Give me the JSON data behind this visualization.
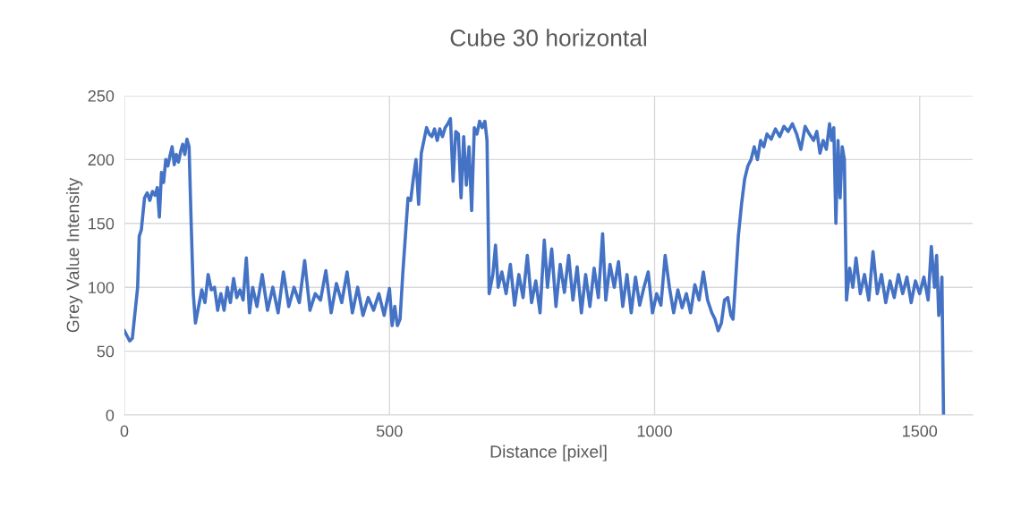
{
  "chart_data": {
    "type": "line",
    "title": "Cube 30 horizontal",
    "xlabel": "Distance [pixel]",
    "ylabel": "Grey Value Intensity",
    "xlim": [
      0,
      1600
    ],
    "xticks": [
      0,
      500,
      1000,
      1500
    ],
    "ylim": [
      0,
      250
    ],
    "yticks": [
      0,
      50,
      100,
      150,
      200,
      250
    ],
    "grid": true,
    "legend": false,
    "marker": "none",
    "line_style": "solid",
    "series": [
      {
        "color": "#4472c4",
        "x": [
          0,
          5,
          10,
          15,
          20,
          25,
          28,
          32,
          38,
          43,
          48,
          53,
          58,
          62,
          66,
          70,
          74,
          78,
          82,
          86,
          90,
          94,
          98,
          102,
          106,
          110,
          114,
          118,
          122,
          126,
          130,
          134,
          140,
          146,
          152,
          158,
          164,
          170,
          176,
          182,
          188,
          194,
          200,
          206,
          212,
          218,
          224,
          230,
          236,
          242,
          250,
          260,
          270,
          280,
          290,
          300,
          310,
          320,
          330,
          340,
          350,
          360,
          370,
          380,
          390,
          400,
          410,
          420,
          430,
          440,
          450,
          460,
          470,
          480,
          490,
          500,
          505,
          510,
          515,
          520,
          525,
          530,
          535,
          540,
          545,
          550,
          555,
          560,
          565,
          570,
          575,
          580,
          585,
          590,
          595,
          600,
          605,
          610,
          615,
          620,
          625,
          630,
          635,
          640,
          645,
          650,
          655,
          660,
          665,
          670,
          675,
          680,
          684,
          688,
          695,
          700,
          705,
          712,
          720,
          728,
          736,
          744,
          752,
          760,
          768,
          776,
          784,
          792,
          798,
          806,
          814,
          822,
          830,
          838,
          846,
          854,
          862,
          870,
          878,
          886,
          894,
          902,
          908,
          916,
          924,
          932,
          940,
          948,
          956,
          964,
          972,
          980,
          988,
          996,
          1004,
          1012,
          1020,
          1028,
          1036,
          1044,
          1052,
          1060,
          1068,
          1076,
          1084,
          1092,
          1100,
          1108,
          1114,
          1120,
          1126,
          1132,
          1138,
          1144,
          1148,
          1152,
          1158,
          1164,
          1170,
          1176,
          1182,
          1188,
          1194,
          1200,
          1206,
          1212,
          1220,
          1228,
          1236,
          1244,
          1252,
          1260,
          1268,
          1276,
          1284,
          1292,
          1300,
          1306,
          1312,
          1318,
          1324,
          1330,
          1334,
          1338,
          1342,
          1346,
          1350,
          1354,
          1358,
          1362,
          1368,
          1374,
          1380,
          1388,
          1396,
          1404,
          1412,
          1420,
          1428,
          1436,
          1444,
          1452,
          1460,
          1468,
          1476,
          1484,
          1492,
          1500,
          1508,
          1516,
          1522,
          1528,
          1532,
          1536,
          1540,
          1542,
          1545
        ],
        "values": [
          66,
          62,
          58,
          60,
          80,
          100,
          140,
          145,
          170,
          174,
          168,
          175,
          172,
          178,
          155,
          190,
          182,
          200,
          195,
          203,
          210,
          196,
          204,
          198,
          206,
          212,
          204,
          216,
          210,
          150,
          95,
          72,
          85,
          98,
          88,
          110,
          98,
          100,
          82,
          95,
          82,
          100,
          88,
          107,
          92,
          98,
          90,
          123,
          80,
          100,
          85,
          110,
          82,
          100,
          80,
          112,
          85,
          100,
          88,
          121,
          82,
          95,
          90,
          113,
          80,
          103,
          88,
          112,
          80,
          100,
          78,
          92,
          82,
          95,
          78,
          99,
          70,
          85,
          70,
          75,
          110,
          140,
          170,
          168,
          185,
          200,
          165,
          205,
          215,
          225,
          220,
          218,
          224,
          215,
          224,
          218,
          225,
          228,
          232,
          183,
          222,
          220,
          170,
          218,
          180,
          210,
          160,
          225,
          220,
          230,
          225,
          230,
          215,
          95,
          110,
          133,
          100,
          112,
          95,
          118,
          86,
          110,
          92,
          125,
          88,
          105,
          80,
          137,
          100,
          130,
          85,
          118,
          96,
          125,
          90,
          116,
          80,
          110,
          85,
          115,
          92,
          142,
          90,
          118,
          100,
          120,
          85,
          110,
          80,
          108,
          86,
          100,
          112,
          80,
          95,
          86,
          125,
          100,
          80,
          98,
          84,
          95,
          80,
          102,
          90,
          112,
          90,
          80,
          75,
          66,
          72,
          90,
          92,
          78,
          75,
          100,
          140,
          165,
          185,
          195,
          200,
          210,
          200,
          215,
          210,
          220,
          216,
          224,
          218,
          226,
          222,
          228,
          220,
          208,
          226,
          220,
          215,
          222,
          205,
          215,
          208,
          228,
          215,
          225,
          150,
          215,
          170,
          210,
          200,
          90,
          115,
          100,
          123,
          95,
          110,
          90,
          128,
          95,
          110,
          88,
          105,
          92,
          110,
          95,
          108,
          88,
          105,
          95,
          108,
          90,
          132,
          100,
          125,
          78,
          92,
          108,
          0
        ]
      }
    ]
  }
}
